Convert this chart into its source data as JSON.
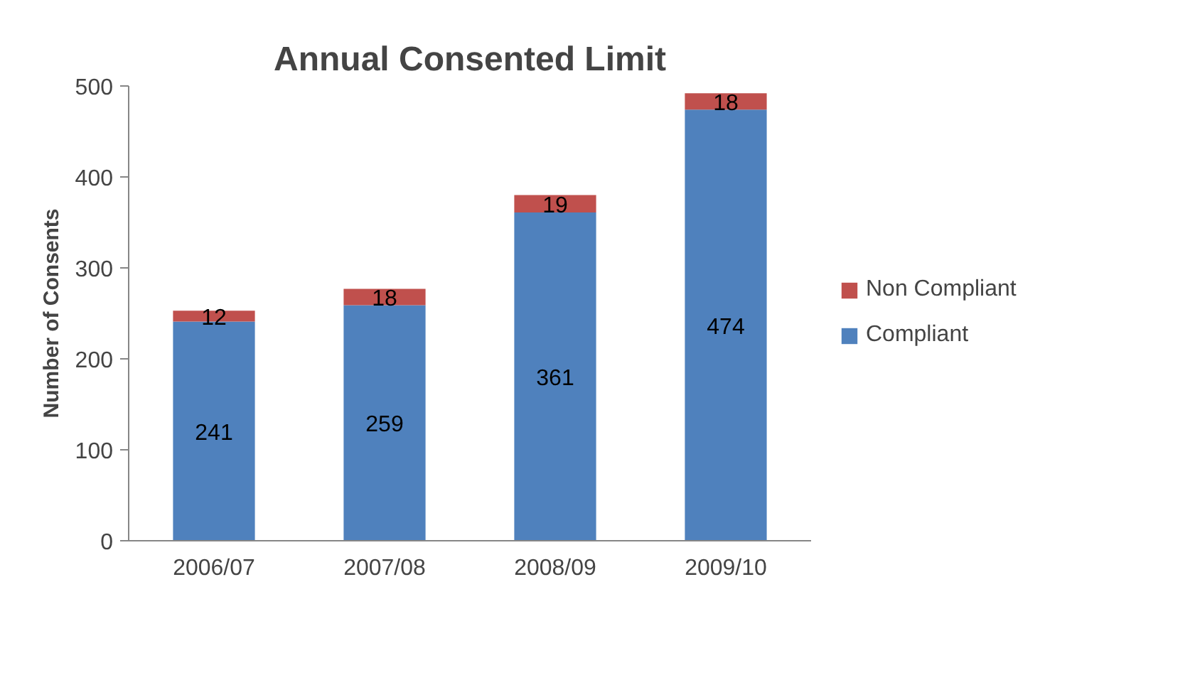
{
  "chart_data": {
    "type": "bar",
    "title": "Annual Consented Limit",
    "ylabel": "Number of Consents",
    "categories": [
      "2006/07",
      "2007/08",
      "2008/09",
      "2009/10"
    ],
    "stacked": true,
    "series": [
      {
        "name": "Compliant",
        "color": "#4f81bd",
        "values": [
          241,
          259,
          361,
          474
        ]
      },
      {
        "name": "Non Compliant",
        "color": "#c0504d",
        "values": [
          12,
          18,
          19,
          18
        ]
      }
    ],
    "ylim": [
      0,
      500
    ],
    "yticks": [
      0,
      100,
      200,
      300,
      400,
      500
    ],
    "data_labels": true,
    "grid": false,
    "legend": "right"
  }
}
